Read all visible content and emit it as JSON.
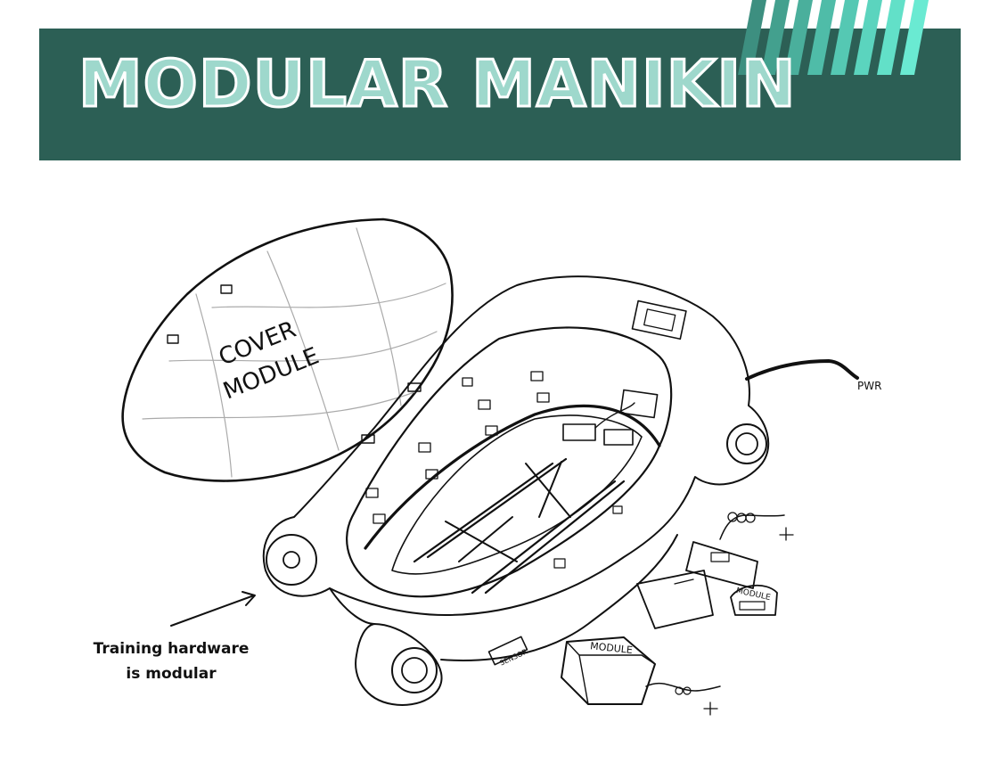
{
  "header": {
    "title": "MODULAR MANIKIN",
    "banner_color": "#2c5f55",
    "title_fill": "#9ed8cc",
    "stripe_colors": [
      "#3d8f80",
      "#43a08e",
      "#4aaf9c",
      "#4fbca8",
      "#55c8b3",
      "#5bd4be",
      "#62e0c8",
      "#6aead2"
    ]
  },
  "drawing": {
    "labels": {
      "cover": "COVER",
      "module": "MODULE",
      "pwr": "PWR",
      "module_box_1": "MODULE",
      "module_box_2": "MODULE",
      "sensor": "SENSOR"
    }
  },
  "caption": {
    "line1": "Training hardware",
    "line2": "is modular"
  }
}
